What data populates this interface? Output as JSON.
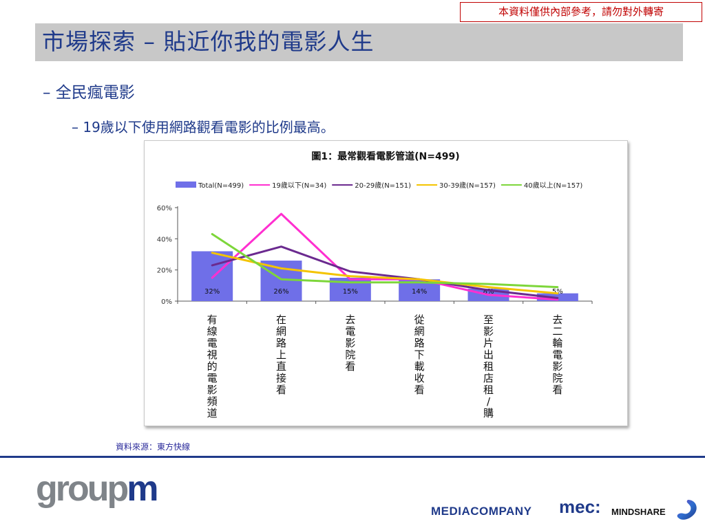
{
  "notice": "本資料僅供內部參考，請勿對外轉寄",
  "title": "市場探索 – 貼近你我的電影人生",
  "bullet1": "– 全民瘋電影",
  "bullet2": "– 19歲以下使用網路觀看電影的比例最高。",
  "source": "資料來源：東方快線",
  "logos": {
    "groupm_1": "group",
    "groupm_2": "m",
    "mediacompany": "MEDIACOMPANY",
    "mec": "mec:",
    "mindshare": "MINDSHARE"
  },
  "chart_data": {
    "type": "bar",
    "title": "圖1：最常觀看電影管道(N=499)",
    "categories": [
      "有線電視的電影頻道",
      "在網路上直接看",
      "去電影院看",
      "從網路下載收看",
      "至影片出租店租/購",
      "去二輪電影院看"
    ],
    "ylim": [
      0,
      60
    ],
    "y_ticks": [
      "0%",
      "20%",
      "40%",
      "60%"
    ],
    "legend_position": "top",
    "series": [
      {
        "name": "Total(N=499)",
        "kind": "bar",
        "color": "#6f6fe8",
        "values": [
          32,
          26,
          15,
          14,
          8,
          5
        ],
        "labels": [
          "32%",
          "26%",
          "15%",
          "14%",
          "8%",
          "5%"
        ]
      },
      {
        "name": "19歲以下(N=34)",
        "kind": "line",
        "color": "#ff2fd0",
        "values": [
          15,
          56,
          14,
          14,
          4,
          1
        ]
      },
      {
        "name": "20-29歲(N=151)",
        "kind": "line",
        "color": "#6b2a8f",
        "values": [
          23,
          35,
          19,
          14,
          7,
          2
        ]
      },
      {
        "name": "30-39歲(N=157)",
        "kind": "line",
        "color": "#f4c400",
        "values": [
          31,
          21,
          16,
          14,
          9,
          5
        ]
      },
      {
        "name": "40歲以上(N=157)",
        "kind": "line",
        "color": "#7dd63a",
        "values": [
          43,
          14,
          12,
          12,
          11,
          9
        ]
      }
    ]
  }
}
